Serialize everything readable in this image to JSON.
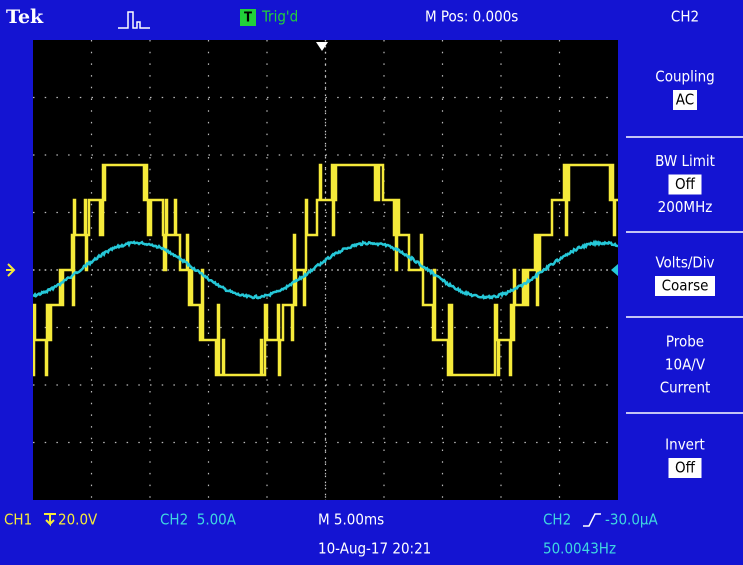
{
  "header": {
    "brand": "Tek",
    "trigger_badge": "T",
    "trigger_status": "Trig'd",
    "position": "M Pos: 0.000s",
    "channel": "CH2"
  },
  "menu": [
    {
      "label": "Coupling",
      "values": [
        "AC"
      ]
    },
    {
      "label": "BW Limit",
      "values": [
        "Off"
      ],
      "note": "200MHz"
    },
    {
      "label": "Volts/Div",
      "values": [
        "Coarse"
      ]
    },
    {
      "label": "Probe",
      "lines": [
        "10A/V",
        "Current"
      ]
    },
    {
      "label": "Invert",
      "values": [
        "Off"
      ]
    }
  ],
  "footer": {
    "ch1_label": "CH1",
    "ch1_scale": "20.0V",
    "ch2_scale": "CH2  5.00A",
    "timebase": "M 5.00ms",
    "trigger_source": "CH2",
    "trigger_level": "-30.0µA",
    "date": "10-Aug-17 20:21",
    "frequency": "50.0043Hz"
  }
}
